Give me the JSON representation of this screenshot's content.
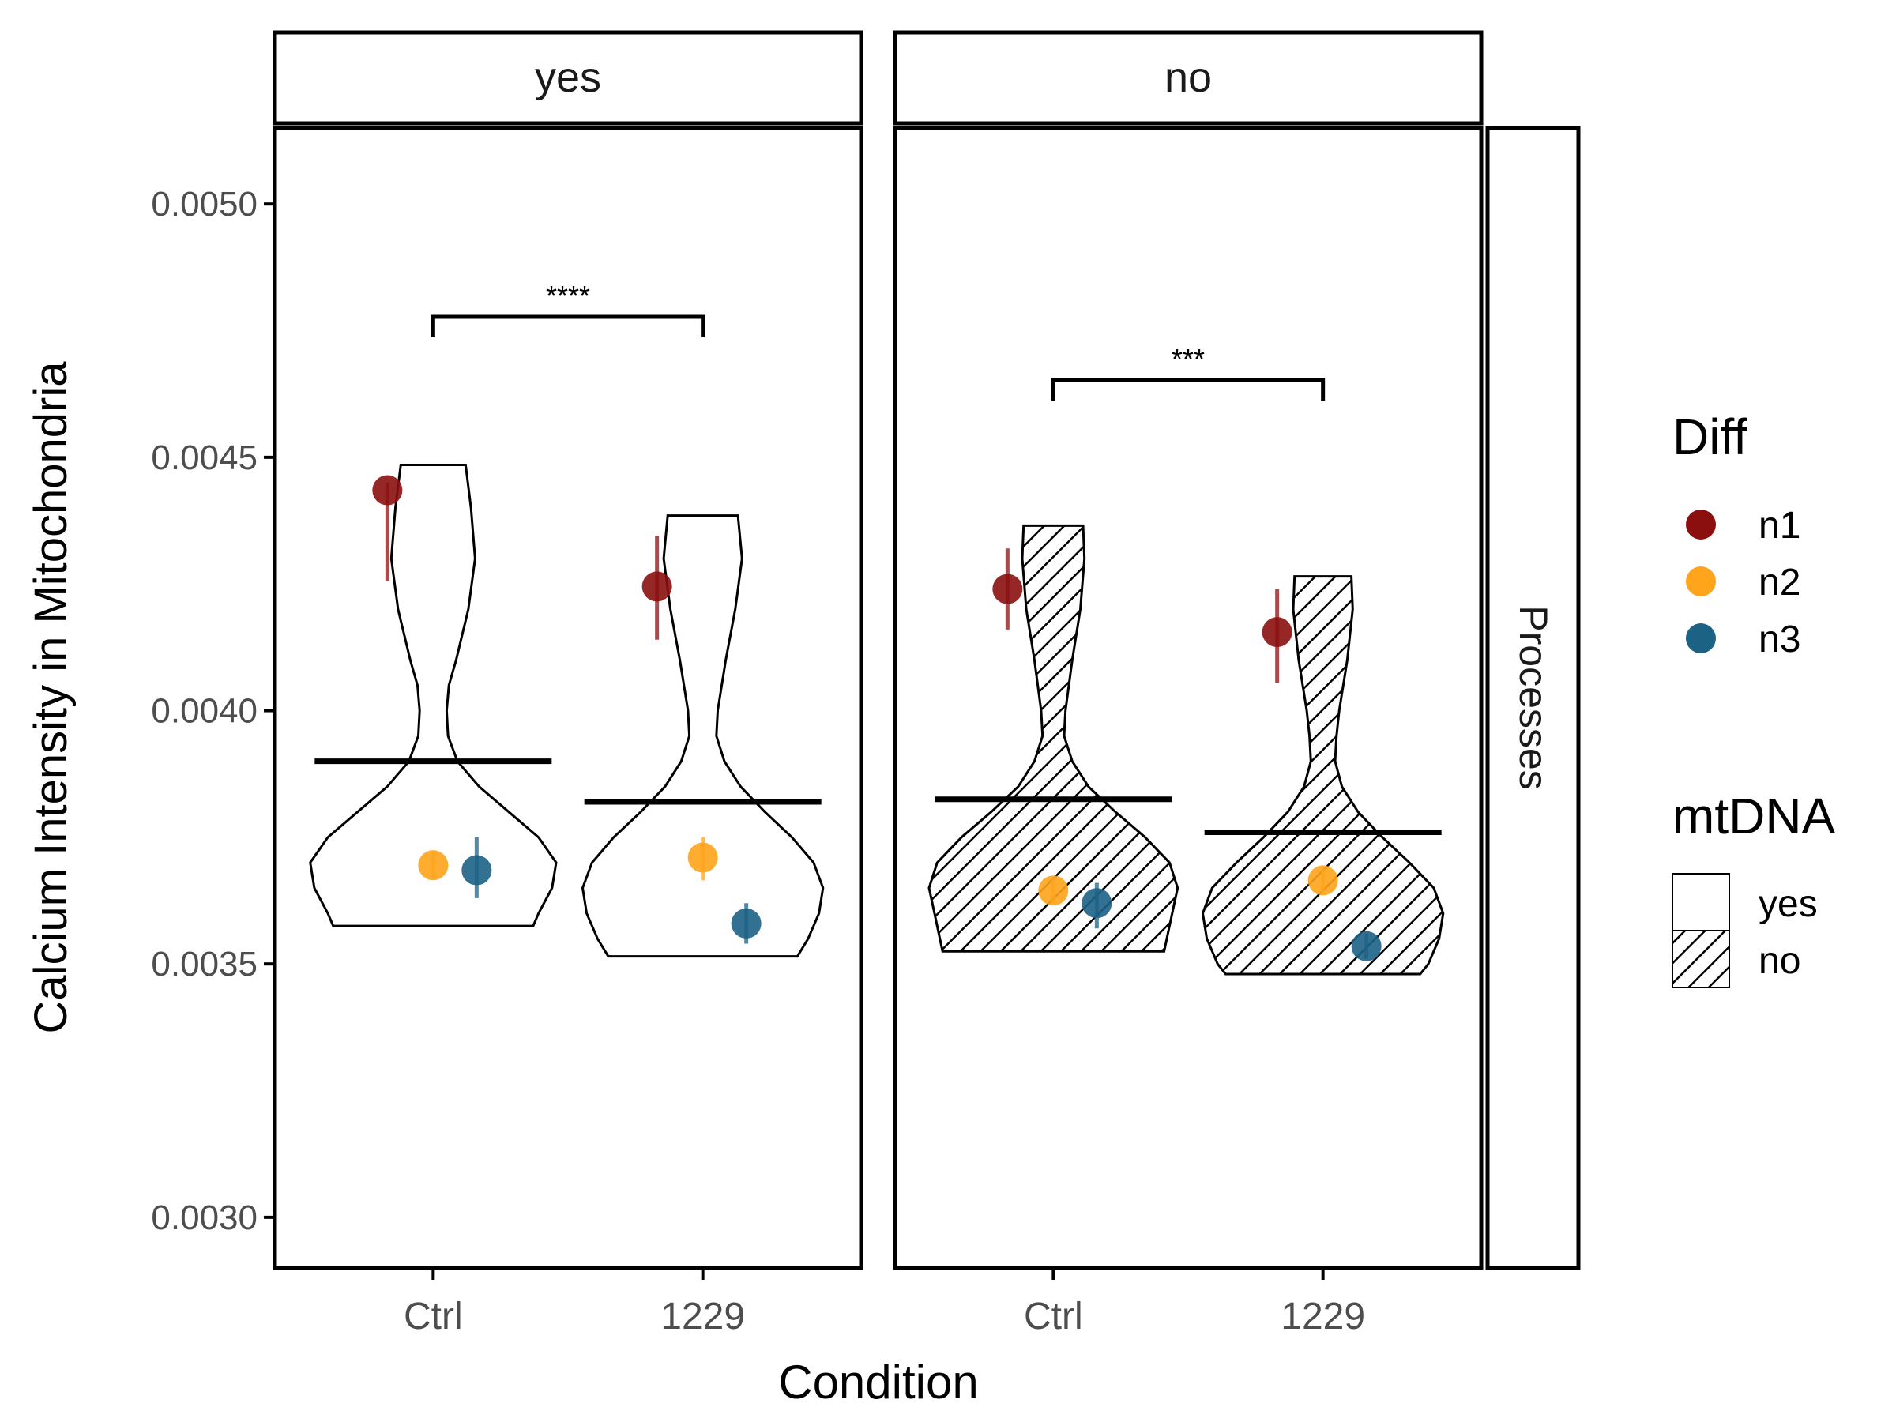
{
  "chart_data": {
    "type": "violin",
    "xlabel": "Condition",
    "ylabel": "Calcium Intensity in Mitochondria",
    "ylim": [
      0.0029,
      0.00515
    ],
    "yticks": [
      "0.0030",
      "0.0035",
      "0.0040",
      "0.0045",
      "0.0050"
    ],
    "ytick_values": [
      0.003,
      0.0035,
      0.004,
      0.0045,
      0.005
    ],
    "categories": [
      "Ctrl",
      "1229"
    ],
    "row_strip": "Processes",
    "grid": false,
    "legend_position": "right",
    "facets": [
      {
        "label": "yes",
        "pattern": "none",
        "significance": "****",
        "groups": [
          {
            "category": "Ctrl",
            "mean": 0.0039,
            "violin": {
              "min": 0.003575,
              "max": 0.004485,
              "profile": [
                [
                  0.003575,
                  0.37
                ],
                [
                  0.0036,
                  0.39
                ],
                [
                  0.00365,
                  0.44
                ],
                [
                  0.0037,
                  0.455
                ],
                [
                  0.00375,
                  0.39
                ],
                [
                  0.0038,
                  0.28
                ],
                [
                  0.00385,
                  0.17
                ],
                [
                  0.0039,
                  0.09
                ],
                [
                  0.00395,
                  0.055
                ],
                [
                  0.004,
                  0.05
                ],
                [
                  0.00405,
                  0.058
                ],
                [
                  0.0041,
                  0.085
                ],
                [
                  0.0042,
                  0.13
                ],
                [
                  0.0043,
                  0.155
                ],
                [
                  0.0044,
                  0.14
                ],
                [
                  0.004485,
                  0.12
                ]
              ]
            },
            "points": [
              {
                "series": "n1",
                "mean": 0.004435,
                "lo": 0.004255,
                "hi": 0.00445
              },
              {
                "series": "n2",
                "mean": 0.003695,
                "lo": 0.00367,
                "hi": 0.00372
              },
              {
                "series": "n3",
                "mean": 0.003685,
                "lo": 0.00363,
                "hi": 0.00375
              }
            ]
          },
          {
            "category": "1229",
            "mean": 0.00382,
            "violin": {
              "min": 0.003515,
              "max": 0.004385,
              "profile": [
                [
                  0.003515,
                  0.35
                ],
                [
                  0.00355,
                  0.39
                ],
                [
                  0.0036,
                  0.43
                ],
                [
                  0.00365,
                  0.445
                ],
                [
                  0.0037,
                  0.41
                ],
                [
                  0.00375,
                  0.33
                ],
                [
                  0.0038,
                  0.23
                ],
                [
                  0.00385,
                  0.14
                ],
                [
                  0.0039,
                  0.08
                ],
                [
                  0.00395,
                  0.05
                ],
                [
                  0.004,
                  0.055
                ],
                [
                  0.0041,
                  0.085
                ],
                [
                  0.0042,
                  0.12
                ],
                [
                  0.0043,
                  0.145
                ],
                [
                  0.004385,
                  0.13
                ]
              ]
            },
            "points": [
              {
                "series": "n1",
                "mean": 0.004245,
                "lo": 0.00414,
                "hi": 0.004345
              },
              {
                "series": "n2",
                "mean": 0.00371,
                "lo": 0.003665,
                "hi": 0.00375
              },
              {
                "series": "n3",
                "mean": 0.00358,
                "lo": 0.00354,
                "hi": 0.00362
              }
            ]
          }
        ]
      },
      {
        "label": "no",
        "pattern": "hatched",
        "significance": "***",
        "groups": [
          {
            "category": "Ctrl",
            "mean": 0.003825,
            "violin": {
              "min": 0.003525,
              "max": 0.004365,
              "profile": [
                [
                  0.003525,
                  0.41
                ],
                [
                  0.00355,
                  0.42
                ],
                [
                  0.0036,
                  0.44
                ],
                [
                  0.00365,
                  0.46
                ],
                [
                  0.0037,
                  0.43
                ],
                [
                  0.00375,
                  0.34
                ],
                [
                  0.0038,
                  0.23
                ],
                [
                  0.00385,
                  0.13
                ],
                [
                  0.0039,
                  0.07
                ],
                [
                  0.00395,
                  0.04
                ],
                [
                  0.004,
                  0.045
                ],
                [
                  0.0041,
                  0.07
                ],
                [
                  0.0042,
                  0.1
                ],
                [
                  0.0043,
                  0.115
                ],
                [
                  0.004365,
                  0.11
                ]
              ]
            },
            "points": [
              {
                "series": "n1",
                "mean": 0.00424,
                "lo": 0.00416,
                "hi": 0.00432
              },
              {
                "series": "n2",
                "mean": 0.003645,
                "lo": 0.00362,
                "hi": 0.00367
              },
              {
                "series": "n3",
                "mean": 0.00362,
                "lo": 0.00357,
                "hi": 0.00366
              }
            ]
          },
          {
            "category": "1229",
            "mean": 0.00376,
            "violin": {
              "min": 0.00348,
              "max": 0.004265,
              "profile": [
                [
                  0.00348,
                  0.36
                ],
                [
                  0.0035,
                  0.39
                ],
                [
                  0.00355,
                  0.43
                ],
                [
                  0.0036,
                  0.445
                ],
                [
                  0.00365,
                  0.41
                ],
                [
                  0.0037,
                  0.32
                ],
                [
                  0.00375,
                  0.22
                ],
                [
                  0.0038,
                  0.13
                ],
                [
                  0.00385,
                  0.07
                ],
                [
                  0.0039,
                  0.045
                ],
                [
                  0.00395,
                  0.05
                ],
                [
                  0.004,
                  0.06
                ],
                [
                  0.0041,
                  0.09
                ],
                [
                  0.0042,
                  0.11
                ],
                [
                  0.004265,
                  0.105
                ]
              ]
            },
            "points": [
              {
                "series": "n1",
                "mean": 0.004155,
                "lo": 0.004055,
                "hi": 0.00424
              },
              {
                "series": "n2",
                "mean": 0.003665,
                "lo": 0.00364,
                "hi": 0.00369
              },
              {
                "series": "n3",
                "mean": 0.003535,
                "lo": 0.00351,
                "hi": 0.00356
              }
            ]
          }
        ]
      }
    ],
    "legend": {
      "diff": {
        "title": "Diff",
        "items": [
          {
            "label": "n1",
            "color": "#8B0F0F"
          },
          {
            "label": "n2",
            "color": "#FFA41B"
          },
          {
            "label": "n3",
            "color": "#1C6285"
          }
        ]
      },
      "mtdna": {
        "title": "mtDNA",
        "items": [
          {
            "label": "yes",
            "pattern": "none"
          },
          {
            "label": "no",
            "pattern": "hatched"
          }
        ]
      }
    }
  }
}
